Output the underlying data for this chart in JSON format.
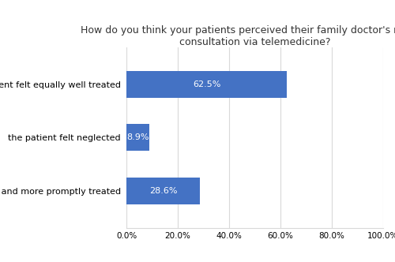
{
  "title": "How do you think your patients perceived their family doctor's remote\nconsultation via telemedicine?",
  "categories": [
    "the patient felt better and more promptly treated",
    "the patient felt neglected",
    "the patient felt equally well treated"
  ],
  "values": [
    28.6,
    8.9,
    62.5
  ],
  "bar_color": "#4472C4",
  "label_color": "#ffffff",
  "label_fontsize": 8,
  "title_fontsize": 9,
  "tick_fontsize": 7.5,
  "ylabel_fontsize": 8,
  "xlim": [
    0,
    100
  ],
  "xticks": [
    0,
    20,
    40,
    60,
    80,
    100
  ],
  "xtick_labels": [
    "0.0%",
    "20.0%",
    "40.0%",
    "60.0%",
    "80.0%",
    "100.0%"
  ],
  "bar_height": 0.5,
  "background_color": "#ffffff",
  "grid_color": "#d9d9d9"
}
